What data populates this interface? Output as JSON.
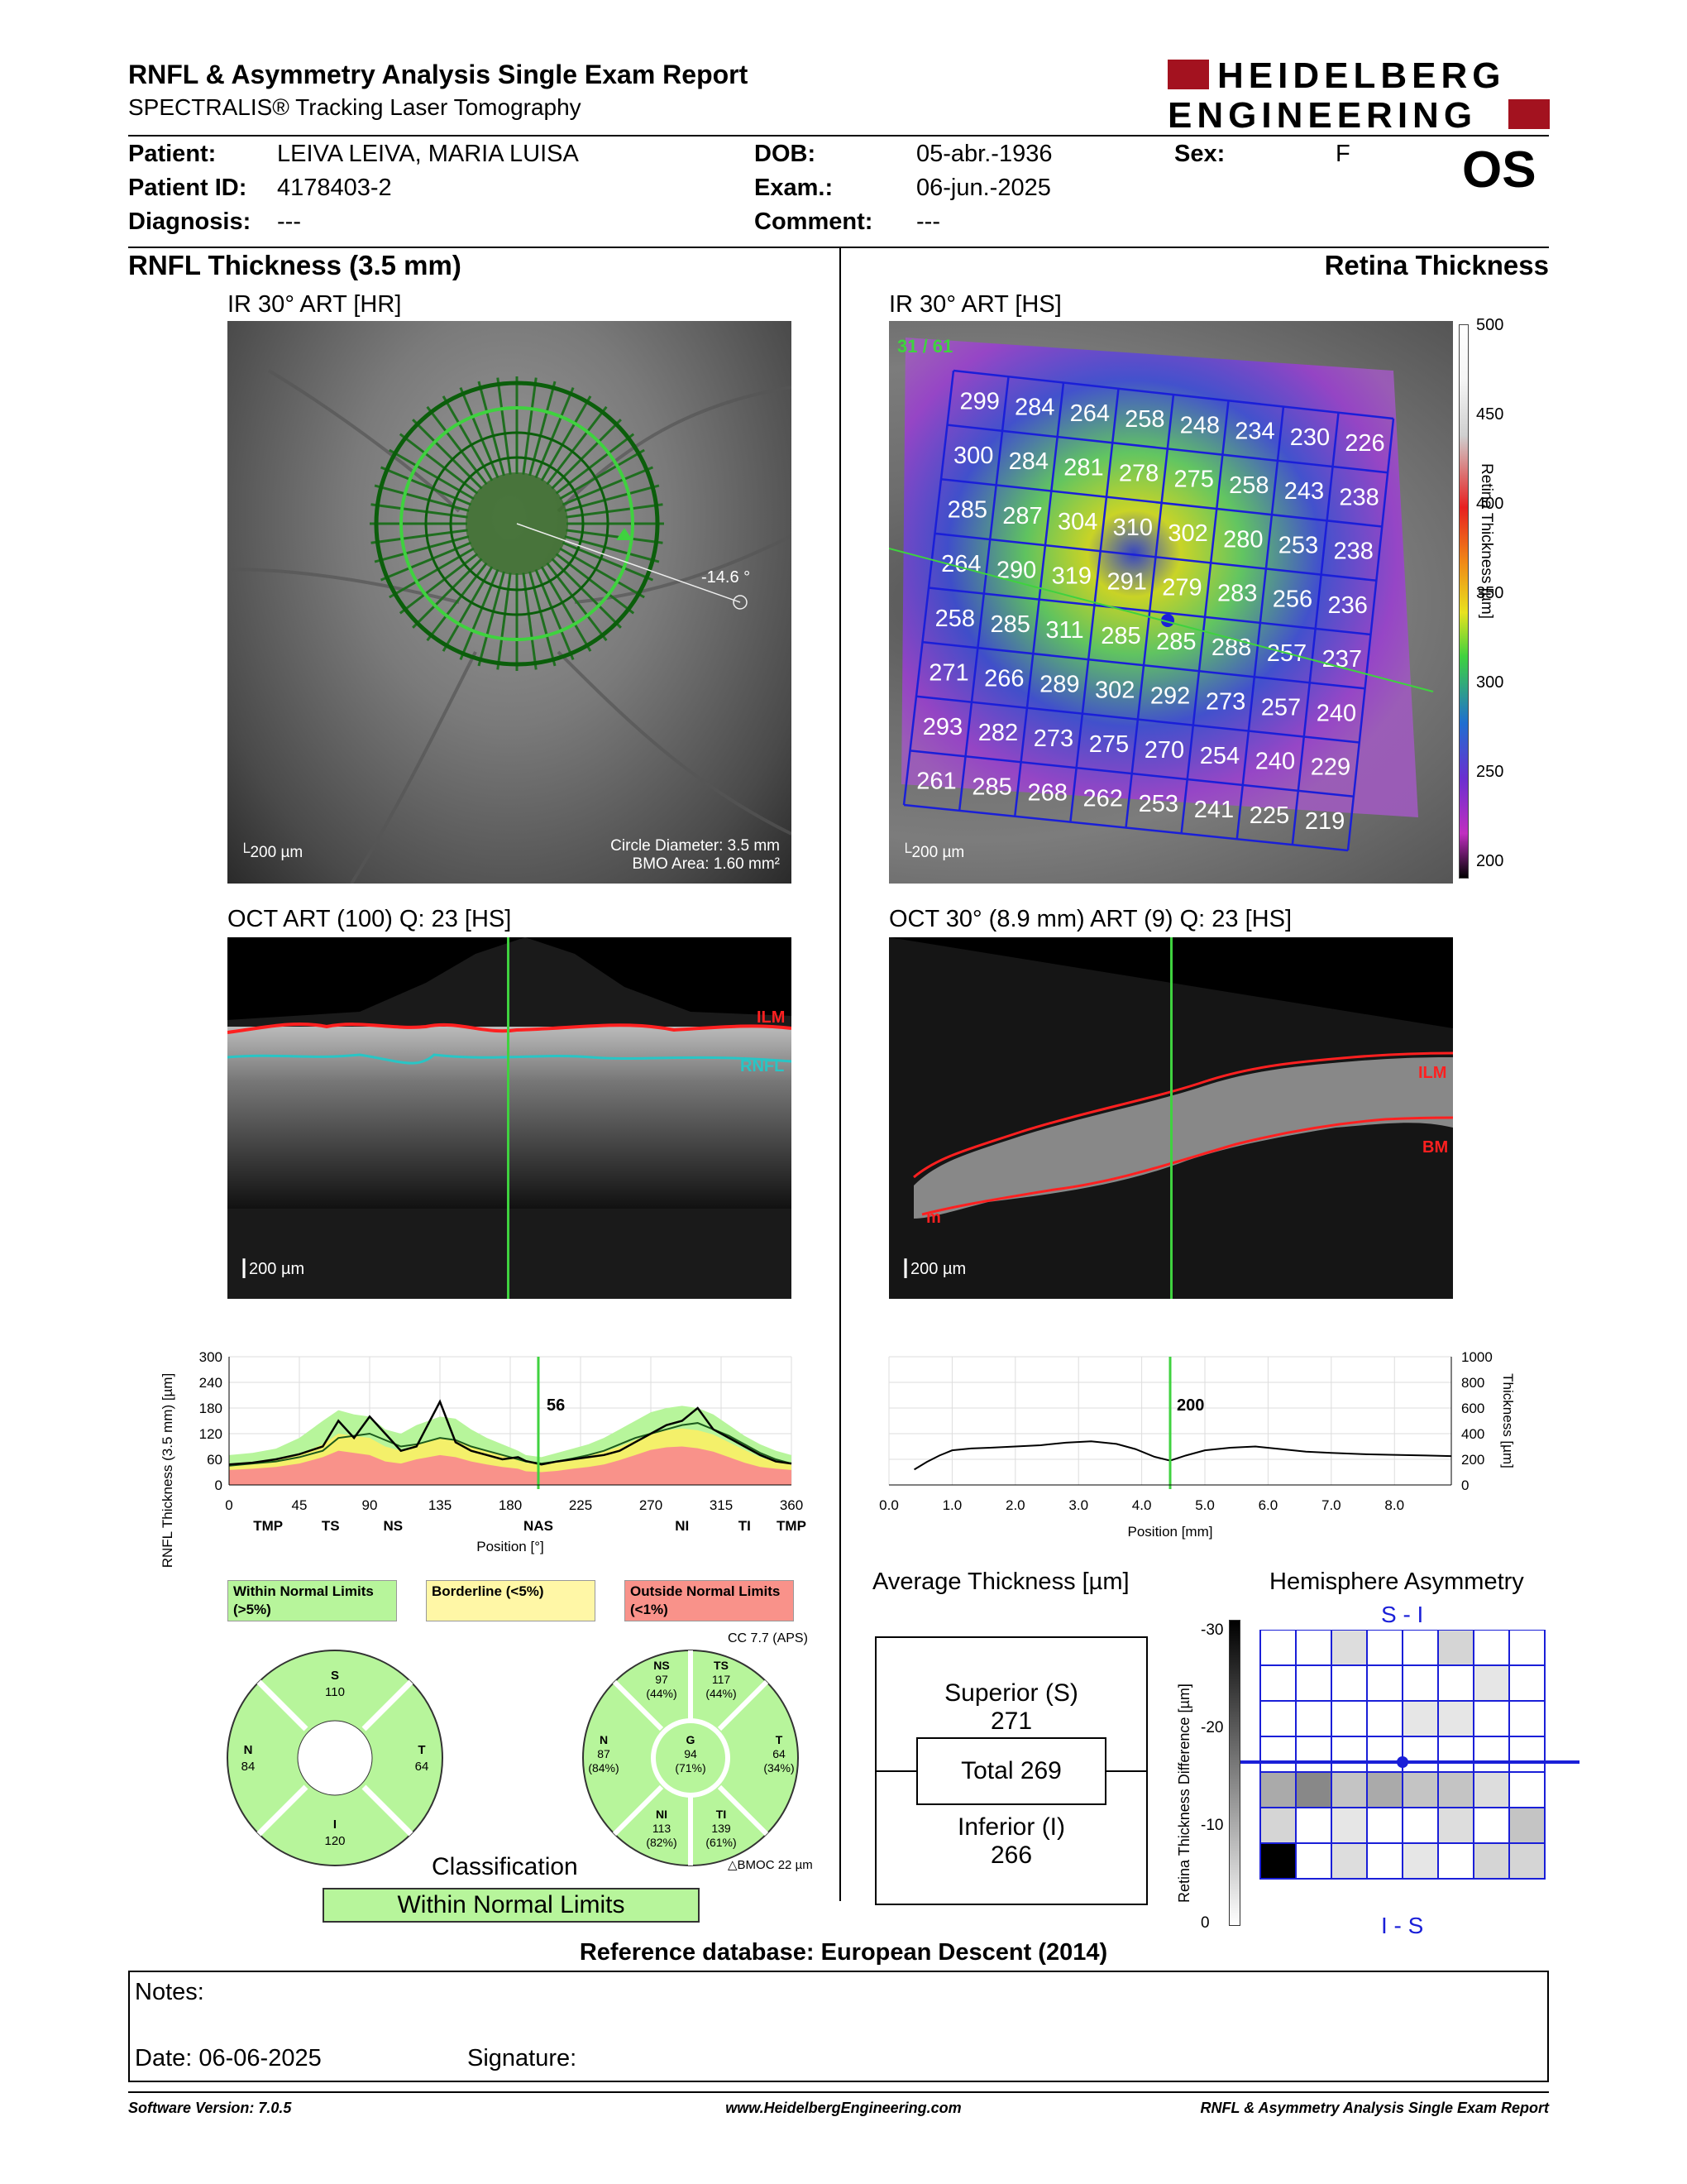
{
  "header": {
    "title": "RNFL & Asymmetry Analysis Single Exam Report",
    "subtitle": "SPECTRALIS® Tracking Laser Tomography",
    "logo_line1": "HEIDELBERG",
    "logo_line2": "ENGINEERING",
    "eye": "OS"
  },
  "patient": {
    "patient_label": "Patient:",
    "patient": "LEIVA LEIVA, MARIA LUISA",
    "id_label": "Patient ID:",
    "id": "4178403-2",
    "diag_label": "Diagnosis:",
    "diag": "---",
    "dob_label": "DOB:",
    "dob": "05-abr.-1936",
    "exam_label": "Exam.:",
    "exam": "06-jun.-2025",
    "comment_label": "Comment:",
    "comment": "---",
    "sex_label": "Sex:",
    "sex": "F"
  },
  "left": {
    "section": "RNFL Thickness (3.5 mm)",
    "ir_label": "IR 30° ART [HR]",
    "ir_scale": "200 µm",
    "angle": "-14.6 °",
    "circle_diam": "Circle Diameter: 3.5 mm",
    "bmo_area": "BMO Area: 1.60 mm²",
    "oct_label": "OCT ART (100) Q: 23 [HS]",
    "oct_scale": "200 µm",
    "ilm": "ILM",
    "rnfl": "RNFL"
  },
  "right": {
    "section": "Retina Thickness",
    "ir_label": "IR 30° ART [HS]",
    "ir_scale": "200 µm",
    "counter": "31 / 61",
    "oct_label": "OCT 30° (8.9 mm) ART (9) Q: 23 [HS]",
    "oct_scale": "200 µm",
    "ilm": "ILM",
    "bm": "BM",
    "bm_left": "m",
    "colorbar_ticks": [
      "500",
      "450",
      "400",
      "350",
      "300",
      "250",
      "200"
    ],
    "colorbar_label": "Retina Thickness [µm]",
    "grid": [
      [
        "299",
        "284",
        "264",
        "258",
        "248",
        "234",
        "230",
        "226"
      ],
      [
        "300",
        "284",
        "281",
        "278",
        "275",
        "258",
        "243",
        "238"
      ],
      [
        "285",
        "287",
        "304",
        "310",
        "302",
        "280",
        "253",
        "238"
      ],
      [
        "264",
        "290",
        "319",
        "291",
        "279",
        "283",
        "256",
        "236"
      ],
      [
        "258",
        "285",
        "311",
        "285",
        "285",
        "288",
        "257",
        "237"
      ],
      [
        "271",
        "266",
        "289",
        "302",
        "292",
        "273",
        "257",
        "240"
      ],
      [
        "293",
        "282",
        "273",
        "275",
        "270",
        "254",
        "240",
        "229"
      ],
      [
        "261",
        "285",
        "268",
        "262",
        "253",
        "241",
        "225",
        "219"
      ]
    ]
  },
  "chart_data": [
    {
      "type": "line",
      "ylabel": "RNFL Thickness (3.5 mm) [µm]",
      "xlabel": "Position [°]",
      "ylim": [
        0,
        300
      ],
      "yticks": [
        "300",
        "240",
        "180",
        "120",
        "60",
        "0"
      ],
      "xticks": [
        "0",
        "45",
        "90",
        "135",
        "180",
        "225",
        "270",
        "315",
        "360"
      ],
      "sector_labels": [
        "TMP",
        "TS",
        "NS",
        "NAS",
        "NI",
        "TI",
        "TMP"
      ],
      "cursor_value": "56",
      "x": [
        0,
        15,
        30,
        45,
        60,
        70,
        80,
        90,
        100,
        110,
        120,
        135,
        145,
        155,
        165,
        175,
        185,
        190,
        200,
        210,
        220,
        230,
        240,
        250,
        260,
        270,
        280,
        290,
        300,
        310,
        320,
        330,
        340,
        350,
        360
      ],
      "series": [
        {
          "values": [
            48,
            52,
            60,
            72,
            90,
            150,
            110,
            160,
            120,
            80,
            90,
            195,
            100,
            80,
            70,
            60,
            65,
            56,
            48,
            55,
            60,
            65,
            70,
            80,
            100,
            120,
            140,
            150,
            180,
            130,
            110,
            90,
            70,
            55,
            50
          ]
        },
        {
          "values": [
            45,
            50,
            55,
            65,
            80,
            110,
            115,
            120,
            105,
            90,
            95,
            110,
            105,
            90,
            80,
            70,
            60,
            55,
            50,
            55,
            62,
            70,
            80,
            95,
            110,
            120,
            130,
            140,
            145,
            130,
            115,
            95,
            75,
            60,
            50
          ]
        }
      ],
      "bands": {
        "normal_upper": [
          70,
          75,
          85,
          110,
          150,
          175,
          165,
          160,
          130,
          120,
          140,
          160,
          155,
          130,
          110,
          95,
          80,
          70,
          65,
          75,
          85,
          95,
          110,
          130,
          150,
          170,
          180,
          185,
          180,
          165,
          140,
          115,
          95,
          80,
          70
        ],
        "border_upper": [
          50,
          52,
          60,
          72,
          95,
          120,
          115,
          110,
          90,
          80,
          95,
          110,
          105,
          90,
          78,
          70,
          60,
          52,
          48,
          55,
          60,
          68,
          78,
          90,
          105,
          120,
          128,
          132,
          128,
          118,
          100,
          82,
          65,
          55,
          50
        ],
        "outside_upper": [
          35,
          38,
          42,
          50,
          65,
          80,
          75,
          70,
          55,
          50,
          60,
          70,
          65,
          55,
          48,
          42,
          38,
          32,
          30,
          33,
          38,
          42,
          48,
          58,
          70,
          82,
          88,
          90,
          86,
          78,
          65,
          52,
          42,
          38,
          35
        ]
      }
    },
    {
      "type": "line",
      "ylabel": "Thickness [µm]",
      "xlabel": "Position [mm]",
      "ylim": [
        0,
        1000
      ],
      "yticks": [
        "1000",
        "800",
        "600",
        "400",
        "200",
        "0"
      ],
      "xticks": [
        "0.0",
        "1.0",
        "2.0",
        "3.0",
        "4.0",
        "5.0",
        "6.0",
        "7.0",
        "8.0"
      ],
      "cursor_value": "200",
      "x": [
        0.4,
        0.6,
        0.8,
        1.0,
        1.3,
        1.6,
        2.0,
        2.4,
        2.8,
        3.2,
        3.6,
        3.9,
        4.2,
        4.45,
        4.7,
        5.0,
        5.4,
        5.8,
        6.2,
        6.6,
        7.0,
        7.5,
        8.0,
        8.5,
        8.9
      ],
      "series": [
        {
          "values": [
            120,
            180,
            230,
            270,
            285,
            290,
            300,
            310,
            330,
            340,
            320,
            280,
            220,
            190,
            230,
            270,
            290,
            300,
            280,
            260,
            250,
            240,
            235,
            230,
            225
          ]
        }
      ]
    },
    {
      "type": "table",
      "title": "Hemisphere Asymmetry",
      "top_label": "S - I",
      "bottom_label": "I - S",
      "scale_label": "Retina Thickness Difference [µm]",
      "scale_ticks": [
        "-30",
        "-20",
        "-10",
        "0"
      ],
      "cells": [
        [
          0,
          0,
          4,
          0,
          0,
          5,
          0,
          0
        ],
        [
          0,
          0,
          0,
          0,
          0,
          0,
          3,
          0
        ],
        [
          0,
          0,
          0,
          0,
          3,
          3,
          0,
          0
        ],
        [
          0,
          0,
          0,
          0,
          0,
          0,
          0,
          0
        ],
        [
          10,
          14,
          7,
          10,
          7,
          7,
          4,
          0
        ],
        [
          5,
          0,
          3,
          0,
          0,
          4,
          0,
          7
        ],
        [
          30,
          0,
          4,
          0,
          3,
          0,
          5,
          5
        ]
      ]
    }
  ],
  "legend": {
    "wnl": "Within Normal Limits (>5%)",
    "border": "Borderline (<5%)",
    "outside": "Outside Normal Limits (<1%)"
  },
  "cc": "CC 7.7 (APS)",
  "pie1": {
    "S": {
      "label": "S",
      "value": "110"
    },
    "N": {
      "label": "N",
      "value": "84"
    },
    "T": {
      "label": "T",
      "value": "64"
    },
    "I": {
      "label": "I",
      "value": "120"
    }
  },
  "pie2": {
    "NS": {
      "label": "NS",
      "value": "97",
      "pct": "(44%)"
    },
    "TS": {
      "label": "TS",
      "value": "117",
      "pct": "(44%)"
    },
    "N": {
      "label": "N",
      "value": "87",
      "pct": "(84%)"
    },
    "G": {
      "label": "G",
      "value": "94",
      "pct": "(71%)"
    },
    "T": {
      "label": "T",
      "value": "64",
      "pct": "(34%)"
    },
    "NI": {
      "label": "NI",
      "value": "113",
      "pct": "(82%)"
    },
    "TI": {
      "label": "TI",
      "value": "139",
      "pct": "(61%)"
    }
  },
  "bmoc": "BMOC 22 µm",
  "classification": {
    "title": "Classification",
    "value": "Within Normal Limits"
  },
  "avg": {
    "title": "Average Thickness [µm]",
    "superior": "Superior (S)",
    "superior_val": "271",
    "total": "Total 269",
    "inferior": "Inferior (I)",
    "inferior_val": "266"
  },
  "refdb": "Reference database: European Descent (2014)",
  "notes": {
    "notes": "Notes:",
    "date": "Date: 06-06-2025",
    "signature": "Signature:"
  },
  "footer": {
    "version": "Software Version: 7.0.5",
    "url": "www.HeidelbergEngineering.com",
    "report": "RNFL & Asymmetry Analysis Single Exam Report"
  }
}
